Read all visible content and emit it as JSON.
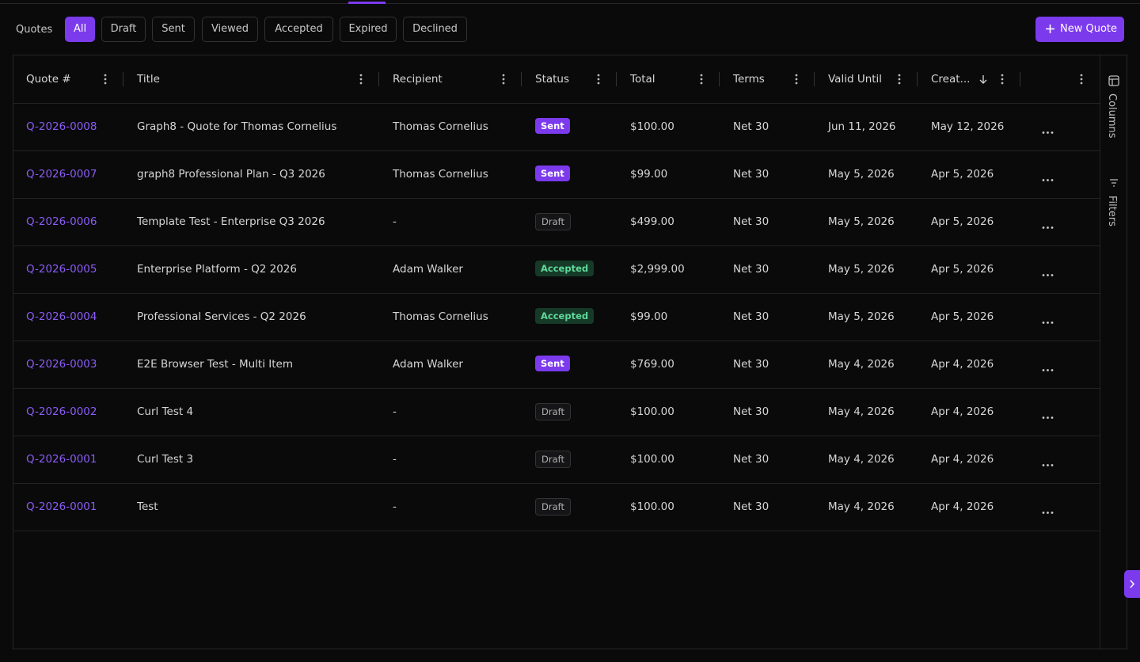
{
  "toolbar": {
    "label": "Quotes",
    "filters": [
      "All",
      "Draft",
      "Sent",
      "Viewed",
      "Accepted",
      "Expired",
      "Declined"
    ],
    "active_filter": 0,
    "new_button": "New Quote"
  },
  "table": {
    "columns": [
      "Quote #",
      "Title",
      "Recipient",
      "Status",
      "Total",
      "Terms",
      "Valid Until",
      "Creat..."
    ],
    "sorted_column": 7,
    "sort_direction": "desc",
    "rows": [
      [
        "Q-2026-0008",
        "Graph8 - Quote for Thomas Cornelius",
        "Thomas Cornelius",
        {
          "text": "Sent",
          "color": "purple"
        },
        "$100.00",
        "Net 30",
        "Jun 11, 2026",
        "May 12, 2026"
      ],
      [
        "Q-2026-0007",
        "graph8 Professional Plan - Q3 2026",
        "Thomas Cornelius",
        {
          "text": "Sent",
          "color": "purple"
        },
        "$99.00",
        "Net 30",
        "May 5, 2026",
        "Apr 5, 2026"
      ],
      [
        "Q-2026-0006",
        "Template Test - Enterprise Q3 2026",
        "-",
        {
          "text": "Draft",
          "color": "gray"
        },
        "$499.00",
        "Net 30",
        "May 5, 2026",
        "Apr 5, 2026"
      ],
      [
        "Q-2026-0005",
        "Enterprise Platform - Q2 2026",
        "Adam Walker",
        {
          "text": "Accepted",
          "color": "green"
        },
        "$2,999.00",
        "Net 30",
        "May 5, 2026",
        "Apr 5, 2026"
      ],
      [
        "Q-2026-0004",
        "Professional Services - Q2 2026",
        "Thomas Cornelius",
        {
          "text": "Accepted",
          "color": "green"
        },
        "$99.00",
        "Net 30",
        "May 5, 2026",
        "Apr 5, 2026"
      ],
      [
        "Q-2026-0003",
        "E2E Browser Test - Multi Item",
        "Adam Walker",
        {
          "text": "Sent",
          "color": "purple"
        },
        "$769.00",
        "Net 30",
        "May 4, 2026",
        "Apr 4, 2026"
      ],
      [
        "Q-2026-0002",
        "Curl Test 4",
        "-",
        {
          "text": "Draft",
          "color": "gray"
        },
        "$100.00",
        "Net 30",
        "May 4, 2026",
        "Apr 4, 2026"
      ],
      [
        "Q-2026-0001",
        "Curl Test 3",
        "-",
        {
          "text": "Draft",
          "color": "gray"
        },
        "$100.00",
        "Net 30",
        "May 4, 2026",
        "Apr 4, 2026"
      ],
      [
        "Q-2026-0001",
        "Test",
        "-",
        {
          "text": "Draft",
          "color": "gray"
        },
        "$100.00",
        "Net 30",
        "May 4, 2026",
        "Apr 4, 2026"
      ]
    ]
  },
  "side_panel": [
    "Columns",
    "Filters"
  ]
}
